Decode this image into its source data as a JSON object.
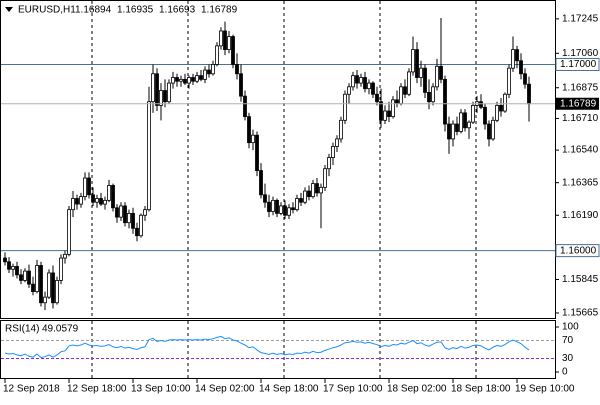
{
  "chart_data": {
    "type": "candlestick",
    "title": "EURUSD,H1",
    "ylim": [
      1.15638,
      1.17341
    ],
    "yticks": [
      1.17245,
      {
        "value": 1.1706,
        "label": "1.17060"
      },
      1.16875,
      {
        "value": 1.1671,
        "label": "1.16710"
      },
      {
        "value": 1.1654,
        "label": "1.16540"
      },
      1.16365,
      {
        "value": 1.1619,
        "label": "1.16190"
      },
      1.15845,
      1.15665
    ],
    "hlines": [
      {
        "value": 1.17,
        "label": "1.17000"
      },
      {
        "value": 1.16,
        "label": "1.16000"
      }
    ],
    "up_color": "#ffffff",
    "down_color": "#000000",
    "categories": [
      "12 Sep 2018",
      null,
      null,
      null,
      null,
      null,
      null,
      null,
      null,
      null,
      null,
      null,
      null,
      null,
      null,
      null,
      "12 Sep 18:00",
      null,
      null,
      null,
      null,
      null,
      null,
      null,
      null,
      null,
      null,
      null,
      null,
      null,
      null,
      null,
      "13 Sep 10:00",
      null,
      null,
      null,
      null,
      null,
      null,
      null,
      null,
      null,
      null,
      null,
      null,
      null,
      null,
      null,
      "14 Sep 02:00",
      null,
      null,
      null,
      null,
      null,
      null,
      null,
      null,
      null,
      null,
      null,
      null,
      null,
      null,
      null,
      "14 Sep 18:00",
      null,
      null,
      null,
      null,
      null,
      null,
      null,
      null,
      null,
      null,
      null,
      null,
      null,
      null,
      null,
      "17 Sep 10:00",
      null,
      null,
      null,
      null,
      null,
      null,
      null,
      null,
      null,
      null,
      null,
      null,
      null,
      null,
      null,
      "18 Sep 02:00",
      null,
      null,
      null,
      null,
      null,
      null,
      null,
      null,
      null,
      null,
      null,
      null,
      null,
      null,
      null,
      "18 Sep 18:00",
      null,
      null,
      null,
      null,
      null,
      null,
      null,
      null,
      null,
      null,
      null,
      null,
      null,
      null,
      null,
      "19 Sep 10:00",
      null,
      null,
      null
    ],
    "candles": [
      [
        1.1596,
        1.1599,
        1.1592,
        1.1594
      ],
      [
        1.1594,
        1.15965,
        1.1588,
        1.159
      ],
      [
        1.159,
        1.1593,
        1.1586,
        1.15915
      ],
      [
        1.15915,
        1.1594,
        1.1585,
        1.1587
      ],
      [
        1.1587,
        1.159,
        1.1582,
        1.1584
      ],
      [
        1.1584,
        1.15905,
        1.1583,
        1.1589
      ],
      [
        1.1589,
        1.15925,
        1.158,
        1.1582
      ],
      [
        1.1582,
        1.1586,
        1.1576,
        1.1578
      ],
      [
        1.1578,
        1.1595,
        1.1577,
        1.1592
      ],
      [
        1.1592,
        1.1594,
        1.157,
        1.1572
      ],
      [
        1.1572,
        1.1578,
        1.1568,
        1.1575
      ],
      [
        1.1575,
        1.159,
        1.1574,
        1.1588
      ],
      [
        1.1588,
        1.1592,
        1.1569,
        1.1572
      ],
      [
        1.1572,
        1.1586,
        1.1571,
        1.1584
      ],
      [
        1.1584,
        1.1598,
        1.1582,
        1.1596
      ],
      [
        1.1596,
        1.16,
        1.1593,
        1.1598
      ],
      [
        1.1598,
        1.1624,
        1.1597,
        1.1622
      ],
      [
        1.1622,
        1.1632,
        1.1618,
        1.1628
      ],
      [
        1.1628,
        1.163,
        1.1622,
        1.1625
      ],
      [
        1.1625,
        1.1631,
        1.1623,
        1.1629
      ],
      [
        1.1629,
        1.1642,
        1.1627,
        1.1639
      ],
      [
        1.1639,
        1.1642,
        1.1628,
        1.163
      ],
      [
        1.163,
        1.1634,
        1.1624,
        1.1626
      ],
      [
        1.1626,
        1.163,
        1.1623,
        1.1628
      ],
      [
        1.1628,
        1.1631,
        1.1624,
        1.1625
      ],
      [
        1.1625,
        1.1629,
        1.1622,
        1.1627
      ],
      [
        1.1627,
        1.1638,
        1.1626,
        1.1635
      ],
      [
        1.1635,
        1.1636,
        1.1621,
        1.1623
      ],
      [
        1.1623,
        1.1625,
        1.1615,
        1.1618
      ],
      [
        1.1618,
        1.1626,
        1.1616,
        1.1624
      ],
      [
        1.1624,
        1.1626,
        1.1613,
        1.1615
      ],
      [
        1.1615,
        1.1622,
        1.1612,
        1.162
      ],
      [
        1.162,
        1.1623,
        1.1609,
        1.1612
      ],
      [
        1.1612,
        1.1615,
        1.1605,
        1.1608
      ],
      [
        1.1608,
        1.162,
        1.1607,
        1.1619
      ],
      [
        1.1619,
        1.1624,
        1.1616,
        1.1622
      ],
      [
        1.1622,
        1.1688,
        1.1621,
        1.168
      ],
      [
        1.168,
        1.17,
        1.1674,
        1.1695
      ],
      [
        1.1695,
        1.1698,
        1.1675,
        1.1678
      ],
      [
        1.1678,
        1.169,
        1.167,
        1.1686
      ],
      [
        1.1686,
        1.1692,
        1.1677,
        1.168
      ],
      [
        1.168,
        1.1692,
        1.1679,
        1.169
      ],
      [
        1.169,
        1.1696,
        1.1687,
        1.1693
      ],
      [
        1.1693,
        1.1695,
        1.1688,
        1.1691
      ],
      [
        1.1691,
        1.1694,
        1.1688,
        1.1692
      ],
      [
        1.1692,
        1.1695,
        1.1689,
        1.169
      ],
      [
        1.169,
        1.1694,
        1.1687,
        1.1693
      ],
      [
        1.1693,
        1.1695,
        1.1689,
        1.1691
      ],
      [
        1.1691,
        1.1696,
        1.169,
        1.1694
      ],
      [
        1.1694,
        1.1697,
        1.1691,
        1.1692
      ],
      [
        1.1692,
        1.1699,
        1.169,
        1.1697
      ],
      [
        1.1697,
        1.17,
        1.1693,
        1.1695
      ],
      [
        1.1695,
        1.1702,
        1.1694,
        1.17
      ],
      [
        1.17,
        1.1712,
        1.1699,
        1.171
      ],
      [
        1.171,
        1.172,
        1.1708,
        1.1718
      ],
      [
        1.1718,
        1.1723,
        1.1705,
        1.1708
      ],
      [
        1.1708,
        1.1718,
        1.1706,
        1.1715
      ],
      [
        1.1715,
        1.1716,
        1.1698,
        1.17
      ],
      [
        1.17,
        1.1706,
        1.1692,
        1.1695
      ],
      [
        1.1695,
        1.17,
        1.168,
        1.1683
      ],
      [
        1.1683,
        1.1686,
        1.167,
        1.1672
      ],
      [
        1.1672,
        1.1674,
        1.1655,
        1.1658
      ],
      [
        1.1658,
        1.1665,
        1.1654,
        1.1662
      ],
      [
        1.1662,
        1.1664,
        1.164,
        1.1643
      ],
      [
        1.1643,
        1.1647,
        1.1628,
        1.163
      ],
      [
        1.163,
        1.1636,
        1.1623,
        1.1626
      ],
      [
        1.1626,
        1.163,
        1.1618,
        1.1621
      ],
      [
        1.1621,
        1.1629,
        1.1619,
        1.1627
      ],
      [
        1.1627,
        1.1628,
        1.1618,
        1.162
      ],
      [
        1.162,
        1.1626,
        1.1619,
        1.1624
      ],
      [
        1.1624,
        1.1627,
        1.1617,
        1.1619
      ],
      [
        1.1619,
        1.1625,
        1.1617,
        1.1623
      ],
      [
        1.1623,
        1.1626,
        1.162,
        1.1622
      ],
      [
        1.1622,
        1.163,
        1.1621,
        1.1628
      ],
      [
        1.1628,
        1.1631,
        1.1624,
        1.1626
      ],
      [
        1.1626,
        1.1634,
        1.1625,
        1.1632
      ],
      [
        1.1632,
        1.1635,
        1.1627,
        1.1629
      ],
      [
        1.1629,
        1.1638,
        1.1628,
        1.1636
      ],
      [
        1.1636,
        1.1639,
        1.1629,
        1.1631
      ],
      [
        1.1631,
        1.1636,
        1.1612,
        1.1634
      ],
      [
        1.1634,
        1.1646,
        1.1632,
        1.1644
      ],
      [
        1.1644,
        1.1652,
        1.164,
        1.165
      ],
      [
        1.165,
        1.1658,
        1.1646,
        1.1656
      ],
      [
        1.1656,
        1.1662,
        1.1653,
        1.166
      ],
      [
        1.166,
        1.1672,
        1.1658,
        1.167
      ],
      [
        1.167,
        1.1686,
        1.1668,
        1.1684
      ],
      [
        1.1684,
        1.169,
        1.1679,
        1.1688
      ],
      [
        1.1688,
        1.1696,
        1.1686,
        1.1694
      ],
      [
        1.1694,
        1.1697,
        1.1687,
        1.169
      ],
      [
        1.169,
        1.1695,
        1.1688,
        1.1693
      ],
      [
        1.1693,
        1.1696,
        1.1685,
        1.1687
      ],
      [
        1.1687,
        1.1692,
        1.1684,
        1.169
      ],
      [
        1.169,
        1.1691,
        1.1682,
        1.1684
      ],
      [
        1.1684,
        1.1688,
        1.1678,
        1.168
      ],
      [
        1.168,
        1.1687,
        1.1666,
        1.167
      ],
      [
        1.167,
        1.1678,
        1.1668,
        1.1675
      ],
      [
        1.1675,
        1.168,
        1.1669,
        1.1672
      ],
      [
        1.1672,
        1.1683,
        1.1671,
        1.1681
      ],
      [
        1.1681,
        1.1686,
        1.1677,
        1.1679
      ],
      [
        1.1679,
        1.169,
        1.1678,
        1.1688
      ],
      [
        1.1688,
        1.1692,
        1.1682,
        1.1684
      ],
      [
        1.1684,
        1.1698,
        1.1683,
        1.1696
      ],
      [
        1.1696,
        1.1715,
        1.1694,
        1.1708
      ],
      [
        1.1708,
        1.1712,
        1.169,
        1.1693
      ],
      [
        1.1693,
        1.1702,
        1.1688,
        1.1698
      ],
      [
        1.1698,
        1.17,
        1.1682,
        1.1685
      ],
      [
        1.1685,
        1.1692,
        1.1676,
        1.168
      ],
      [
        1.168,
        1.169,
        1.1678,
        1.1688
      ],
      [
        1.1688,
        1.1703,
        1.1686,
        1.1699
      ],
      [
        1.1699,
        1.1725,
        1.169,
        1.1692
      ],
      [
        1.1692,
        1.1694,
        1.1664,
        1.1668
      ],
      [
        1.1668,
        1.1672,
        1.1652,
        1.166
      ],
      [
        1.166,
        1.167,
        1.1656,
        1.1668
      ],
      [
        1.1668,
        1.1672,
        1.1662,
        1.1664
      ],
      [
        1.1664,
        1.1676,
        1.1663,
        1.1674
      ],
      [
        1.1674,
        1.1676,
        1.1664,
        1.1666
      ],
      [
        1.1666,
        1.167,
        1.166,
        1.1669
      ],
      [
        1.1669,
        1.168,
        1.1668,
        1.1678
      ],
      [
        1.1678,
        1.1683,
        1.1674,
        1.168
      ],
      [
        1.168,
        1.1684,
        1.1676,
        1.1677
      ],
      [
        1.1677,
        1.1679,
        1.1665,
        1.1668
      ],
      [
        1.1668,
        1.167,
        1.1656,
        1.166
      ],
      [
        1.166,
        1.1672,
        1.1659,
        1.167
      ],
      [
        1.167,
        1.168,
        1.1669,
        1.1678
      ],
      [
        1.1678,
        1.1682,
        1.1672,
        1.1675
      ],
      [
        1.1675,
        1.1685,
        1.1674,
        1.1684
      ],
      [
        1.1684,
        1.17,
        1.1682,
        1.1698
      ],
      [
        1.1698,
        1.1715,
        1.1696,
        1.1708
      ],
      [
        1.1708,
        1.171,
        1.1698,
        1.1702
      ],
      [
        1.1702,
        1.1706,
        1.1692,
        1.1695
      ],
      [
        1.1695,
        1.1698,
        1.1687,
        1.16894
      ],
      [
        1.16894,
        1.16935,
        1.16693,
        1.16789
      ]
    ],
    "rsi": {
      "title": "RSI(14)",
      "color": "#1e90ff",
      "ylim": [
        0,
        100
      ],
      "yticks": [
        0,
        30,
        70,
        100
      ],
      "values": [
        42,
        40,
        41,
        38,
        36,
        40,
        35,
        33,
        40,
        32,
        34,
        38,
        33,
        38,
        45,
        47,
        58,
        60,
        58,
        60,
        64,
        60,
        58,
        59,
        57,
        58,
        61,
        56,
        54,
        57,
        53,
        55,
        52,
        50,
        54,
        56,
        72,
        75,
        68,
        70,
        68,
        71,
        72,
        71,
        72,
        71,
        72,
        71,
        72,
        71,
        73,
        72,
        74,
        77,
        79,
        74,
        76,
        71,
        69,
        64,
        60,
        54,
        56,
        49,
        43,
        41,
        39,
        42,
        39,
        41,
        38,
        40,
        39,
        42,
        41,
        44,
        42,
        46,
        43,
        44,
        48,
        51,
        54,
        56,
        60,
        65,
        66,
        68,
        66,
        67,
        64,
        66,
        63,
        61,
        56,
        59,
        57,
        61,
        60,
        64,
        62,
        66,
        70,
        63,
        65,
        60,
        57,
        62,
        66,
        67,
        54,
        50,
        54,
        52,
        57,
        53,
        55,
        59,
        60,
        58,
        53,
        49,
        55,
        59,
        57,
        61,
        67,
        71,
        67,
        63,
        55,
        49.0579
      ]
    }
  }
}
